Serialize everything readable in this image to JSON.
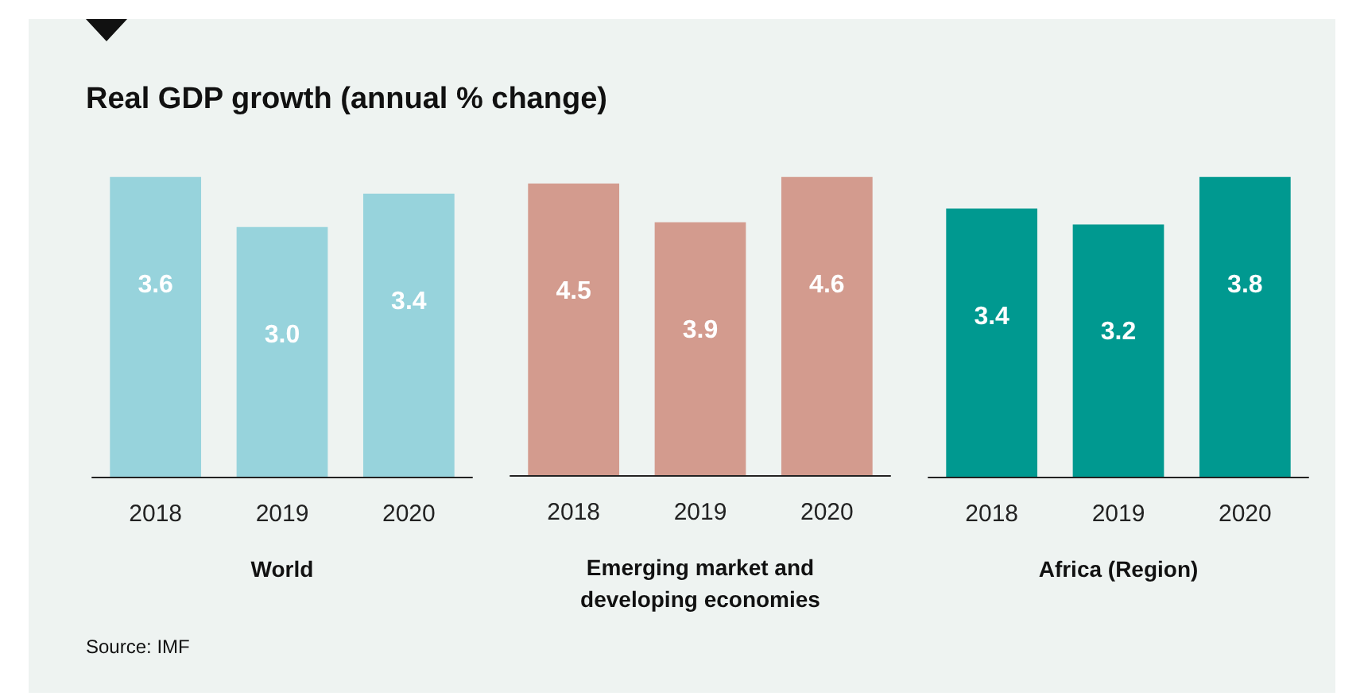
{
  "chart_data": [
    {
      "type": "bar",
      "title": "Real GDP growth (annual % change)",
      "categories": [
        "2018",
        "2019",
        "2020"
      ],
      "values": [
        3.6,
        3.0,
        3.4
      ],
      "value_labels": [
        "3.6",
        "3.0",
        "3.4"
      ],
      "color": "#97d3dc",
      "xlabel": "World",
      "annotations": [
        "Source: IMF"
      ]
    },
    {
      "type": "bar",
      "categories": [
        "2018",
        "2019",
        "2020"
      ],
      "values": [
        4.5,
        3.9,
        4.6
      ],
      "value_labels": [
        "4.5",
        "3.9",
        "4.6"
      ],
      "color": "#d39b8e",
      "xlabel": "Emerging market and\ndeveloping economies"
    },
    {
      "type": "bar",
      "categories": [
        "2018",
        "2019",
        "2020"
      ],
      "values": [
        3.4,
        3.2,
        3.8
      ],
      "value_labels": [
        "3.4",
        "3.2",
        "3.8"
      ],
      "color": "#009990",
      "xlabel": "Africa (Region)"
    }
  ]
}
